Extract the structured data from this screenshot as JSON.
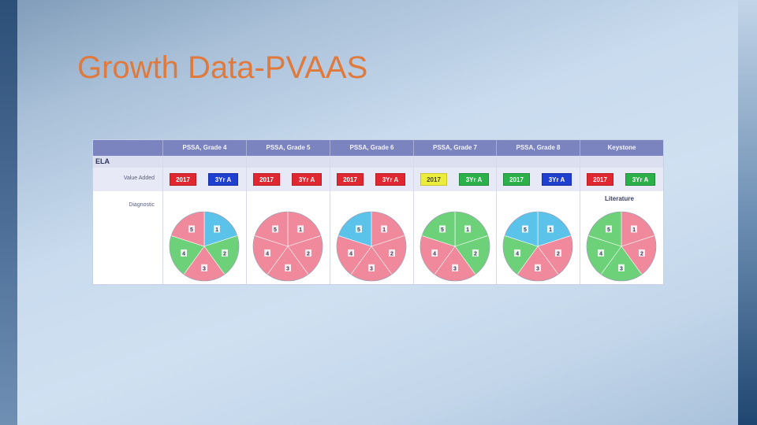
{
  "slide": {
    "title": "Growth Data-PVAAS"
  },
  "table": {
    "columns": [
      "PSSA, Grade 4",
      "PSSA, Grade 5",
      "PSSA, Grade 6",
      "PSSA, Grade 7",
      "PSSA, Grade 8",
      "Keystone"
    ],
    "section": "ELA",
    "row_labels": {
      "value_added": "Value Added",
      "diagnostic": "Diagnostic"
    },
    "subject_label": "Literature",
    "value_added": [
      {
        "year": "2017",
        "year_color": "red",
        "three_yr": "3Yr A",
        "three_yr_color": "blue"
      },
      {
        "year": "2017",
        "year_color": "red",
        "three_yr": "3Yr A",
        "three_yr_color": "red"
      },
      {
        "year": "2017",
        "year_color": "red",
        "three_yr": "3Yr A",
        "three_yr_color": "red"
      },
      {
        "year": "2017",
        "year_color": "yellow",
        "three_yr": "3Yr A",
        "three_yr_color": "green"
      },
      {
        "year": "2017",
        "year_color": "green",
        "three_yr": "3Yr A",
        "three_yr_color": "blue"
      },
      {
        "year": "2017",
        "year_color": "red",
        "three_yr": "3Yr A",
        "three_yr_color": "green"
      }
    ],
    "colors": {
      "red": "#f0899b",
      "green": "#6dd17a",
      "blue": "#5bc2ea"
    },
    "pies": [
      {
        "slices": [
          {
            "label": "1",
            "color": "blue"
          },
          {
            "label": "2",
            "color": "green"
          },
          {
            "label": "3",
            "color": "red"
          },
          {
            "label": "4",
            "color": "green"
          },
          {
            "label": "5",
            "color": "red"
          }
        ]
      },
      {
        "slices": [
          {
            "label": "1",
            "color": "red"
          },
          {
            "label": "2",
            "color": "red"
          },
          {
            "label": "3",
            "color": "red"
          },
          {
            "label": "4",
            "color": "red"
          },
          {
            "label": "5",
            "color": "red"
          }
        ]
      },
      {
        "slices": [
          {
            "label": "1",
            "color": "red"
          },
          {
            "label": "2",
            "color": "red"
          },
          {
            "label": "3",
            "color": "red"
          },
          {
            "label": "4",
            "color": "red"
          },
          {
            "label": "5",
            "color": "blue"
          }
        ]
      },
      {
        "slices": [
          {
            "label": "1",
            "color": "green"
          },
          {
            "label": "2",
            "color": "green"
          },
          {
            "label": "3",
            "color": "red"
          },
          {
            "label": "4",
            "color": "red"
          },
          {
            "label": "5",
            "color": "green"
          }
        ]
      },
      {
        "slices": [
          {
            "label": "1",
            "color": "blue"
          },
          {
            "label": "2",
            "color": "red"
          },
          {
            "label": "3",
            "color": "red"
          },
          {
            "label": "4",
            "color": "green"
          },
          {
            "label": "5",
            "color": "blue"
          }
        ]
      },
      {
        "slices": [
          {
            "label": "1",
            "color": "red"
          },
          {
            "label": "2",
            "color": "red"
          },
          {
            "label": "3",
            "color": "green"
          },
          {
            "label": "4",
            "color": "green"
          },
          {
            "label": "5",
            "color": "green"
          }
        ]
      }
    ]
  }
}
